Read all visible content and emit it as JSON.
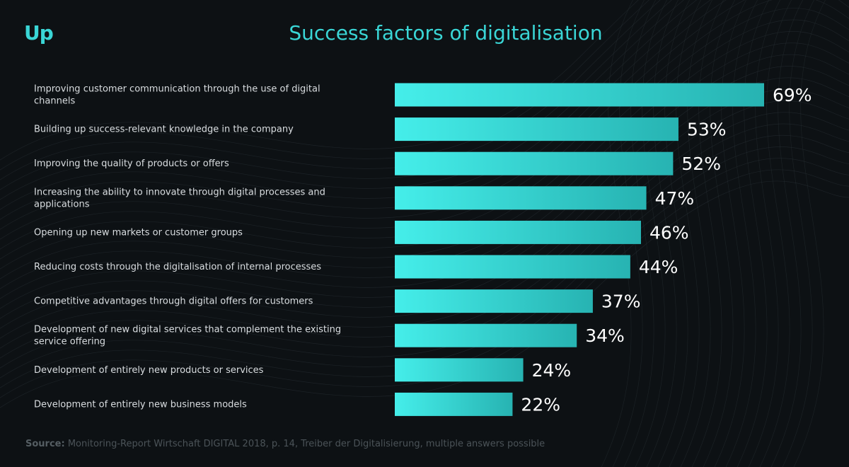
{
  "logo": {
    "text": "Up"
  },
  "chart_data": {
    "type": "bar",
    "orientation": "horizontal",
    "title": "Success factors of digitalisation",
    "xlabel": "",
    "ylabel": "",
    "xlim": [
      0,
      69
    ],
    "categories": [
      "Improving customer communication through the use of digital channels",
      "Building up success-relevant knowledge in the company",
      "Improving the quality of products or offers",
      "Increasing the ability to innovate through digital processes and applications",
      "Opening up new markets or customer groups",
      "Reducing costs through the digitalisation of internal processes",
      "Competitive advantages through digital offers for customers",
      "Development of new digital services that complement the existing service offering",
      "Development of entirely new products or services",
      "Development of entirely new business models"
    ],
    "values": [
      69,
      53,
      52,
      47,
      46,
      44,
      37,
      34,
      24,
      22
    ],
    "value_labels": [
      "69%",
      "53%",
      "52%",
      "47%",
      "46%",
      "44%",
      "37%",
      "34%",
      "24%",
      "22%"
    ],
    "colors": {
      "bar_start": "#45eeea",
      "bar_end": "#27b3b2",
      "title": "#3ad6d6"
    },
    "grid": false,
    "legend": "none"
  },
  "source": {
    "label": "Source:",
    "text": "Monitoring-Report Wirtschaft DIGITAL 2018, p. 14, Treiber der Digitalisierung, multiple answers possible"
  }
}
